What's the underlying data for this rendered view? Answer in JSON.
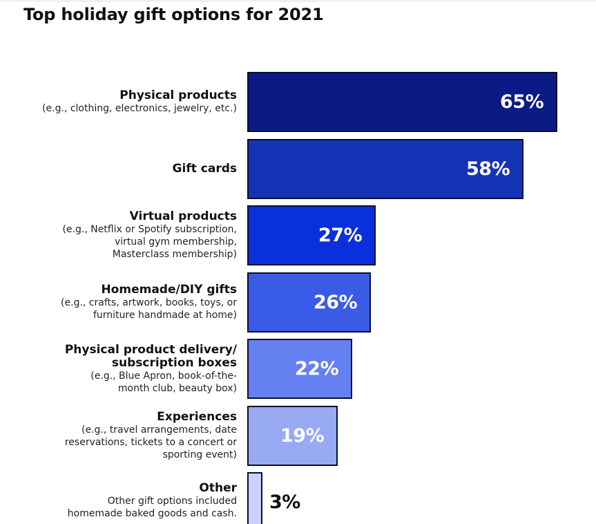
{
  "title": "Top holiday gift options for 2021",
  "chart_data": {
    "type": "bar",
    "orientation": "horizontal",
    "title": "Top holiday gift options for 2021",
    "value_suffix": "%",
    "categories": [
      "Physical products",
      "Gift cards",
      "Virtual products",
      "Homemade/DIY gifts",
      "Physical product delivery/\nsubscription boxes",
      "Experiences",
      "Other"
    ],
    "notes": [
      "(e.g., clothing, electronics, jewelry, etc.)",
      "",
      "(e.g., Netflix or Spotify subscription,\nvirtual gym membership,\nMasterclass membership)",
      "(e.g., crafts, artwork, books, toys, or\nfurniture handmade at home)",
      "(e.g., Blue Apron, book-of-the-\nmonth club, beauty box)",
      "(e.g., travel arrangements, date\nreservations, tickets to a concert or\nsporting event)",
      "Other gift options included\nhomemade baked goods and cash."
    ],
    "values": [
      65,
      58,
      27,
      26,
      22,
      19,
      3
    ],
    "value_labels": [
      "65%",
      "58%",
      "27%",
      "26%",
      "22%",
      "19%",
      "3%"
    ],
    "bar_colors": [
      "#0b1a85",
      "#1534b5",
      "#0a30dc",
      "#3a5be6",
      "#6580f0",
      "#97aaf3",
      "#c9d2fb"
    ],
    "label_colors": [
      "#ffffff",
      "#ffffff",
      "#ffffff",
      "#ffffff",
      "#ffffff",
      "#ffffff",
      "#111111"
    ]
  }
}
